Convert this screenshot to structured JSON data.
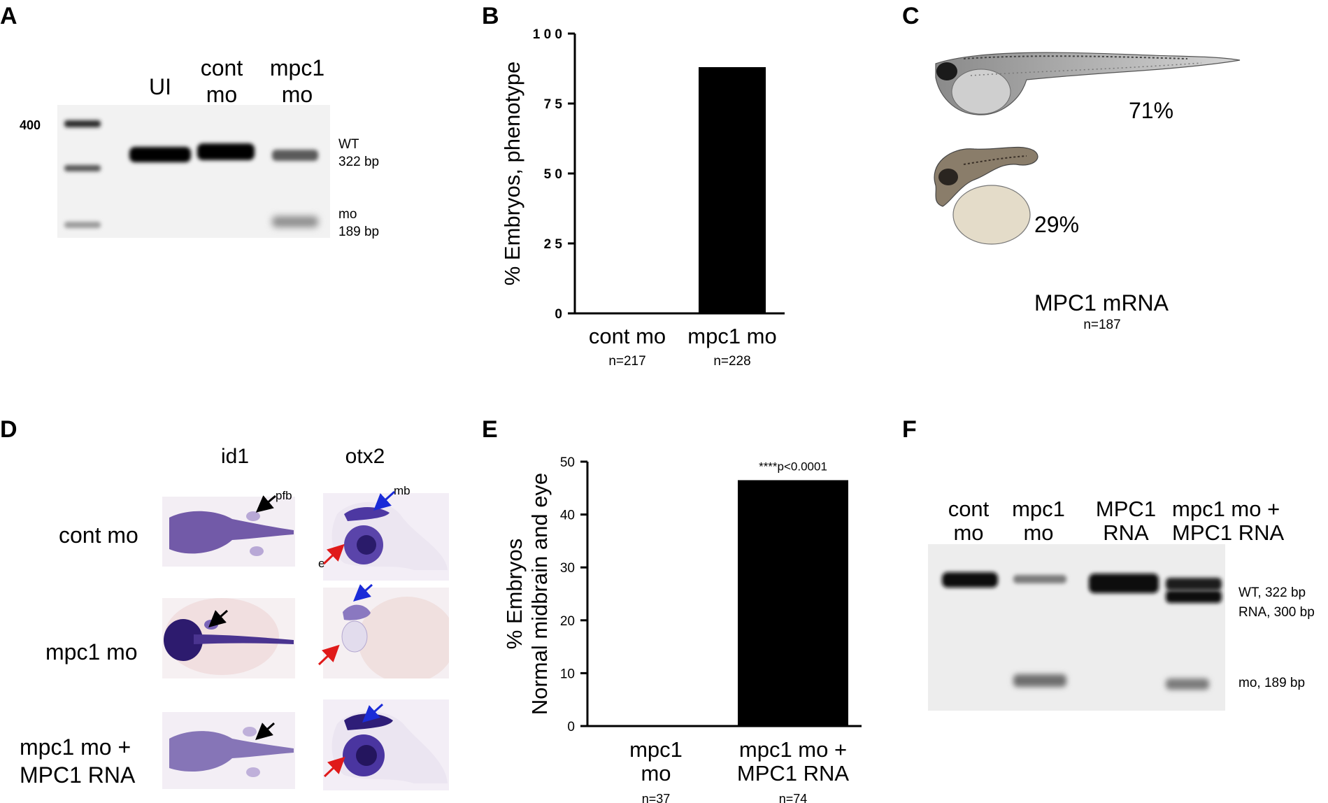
{
  "panels": [
    "A",
    "B",
    "C",
    "D",
    "E",
    "F"
  ],
  "panel_a": {
    "ladder_label": "400",
    "lanes": [
      {
        "line1": "UI",
        "line2": ""
      },
      {
        "line1": "cont",
        "line2": "mo"
      },
      {
        "line1": "mpc1",
        "line2": "mo"
      }
    ],
    "band_wt": {
      "line1": "WT",
      "line2": "322 bp"
    },
    "band_mo": {
      "line1": "mo",
      "line2": "189 bp"
    }
  },
  "panel_c": {
    "pct_normal": "71%",
    "pct_defect": "29%",
    "label": "MPC1 mRNA",
    "n": "n=187"
  },
  "panel_d": {
    "col1": "id1",
    "col2": "otx2",
    "rows": [
      "cont mo",
      "mpc1 mo",
      "mpc1 mo +\nMPC1 RNA"
    ],
    "row3_line1": "mpc1 mo +",
    "row3_line2": "MPC1 RNA",
    "annot_pfb": "pfb",
    "annot_mb": "mb",
    "annot_e": "e"
  },
  "panel_f": {
    "lanes": [
      {
        "line1": "cont",
        "line2": "mo"
      },
      {
        "line1": "mpc1",
        "line2": "mo"
      },
      {
        "line1": "MPC1",
        "line2": "RNA"
      },
      {
        "line1": "mpc1 mo +",
        "line2": "MPC1 RNA"
      }
    ],
    "band_wt": "WT, 322 bp",
    "band_rna": "RNA, 300 bp",
    "band_mo": "mo, 189 bp"
  },
  "chart_data": [
    {
      "type": "bar",
      "panel": "B",
      "categories": [
        "cont mo",
        "mpc1 mo"
      ],
      "n_labels": [
        "n=217",
        "n=228"
      ],
      "values": [
        0,
        88
      ],
      "ylabel": "% Embryos, phenotype",
      "ylim": [
        0,
        100
      ],
      "yticks": [
        0,
        25,
        50,
        75,
        100
      ],
      "grid": false,
      "bar_color": "#000000"
    },
    {
      "type": "bar",
      "panel": "E",
      "categories": [
        "mpc1 mo",
        "mpc1 mo + MPC1 RNA"
      ],
      "category_lines": [
        [
          "mpc1",
          "mo"
        ],
        [
          "mpc1 mo +",
          "MPC1 RNA"
        ]
      ],
      "n_labels": [
        "n=37",
        "n=74"
      ],
      "values": [
        0,
        46.5
      ],
      "ylabel_lines": [
        "% Embryos",
        "Normal midbrain and eye"
      ],
      "ylim": [
        0,
        50
      ],
      "yticks": [
        0,
        10,
        20,
        30,
        40,
        50
      ],
      "annotation": "****p<0.0001",
      "grid": false,
      "bar_color": "#000000"
    }
  ]
}
